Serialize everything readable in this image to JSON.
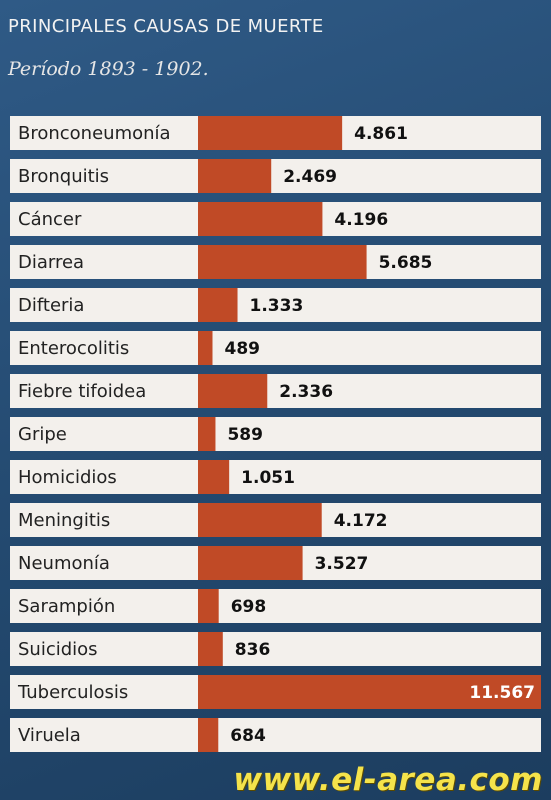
{
  "chart_data": {
    "type": "bar",
    "orientation": "horizontal",
    "title": "PRINCIPALES CAUSAS DE MUERTE",
    "subtitle": "Período 1893 - 1902.",
    "categories": [
      "Bronconeumonía",
      "Bronquitis",
      "Cáncer",
      "Diarrea",
      "Difteria",
      "Enterocolitis",
      "Fiebre tifoidea",
      "Gripe",
      "Homicidios",
      "Meningitis",
      "Neumonía",
      "Sarampión",
      "Suicidios",
      "Tuberculosis",
      "Viruela"
    ],
    "values": [
      4861,
      2469,
      4196,
      5685,
      1333,
      489,
      2336,
      589,
      1051,
      4172,
      3527,
      698,
      836,
      11567,
      684
    ],
    "value_labels": [
      "4.861",
      "2.469",
      "4.196",
      "5.685",
      "1.333",
      "489",
      "2.336",
      "589",
      "1.051",
      "4.172",
      "3.527",
      "698",
      "836",
      "11.567",
      "684"
    ],
    "xlim": [
      0,
      11567
    ],
    "grid": false,
    "legend": "none",
    "colors": {
      "bar": "#c04a26",
      "row": "#f3f0ec",
      "background": "#2a5380"
    }
  },
  "watermark": "www.el-area.com"
}
